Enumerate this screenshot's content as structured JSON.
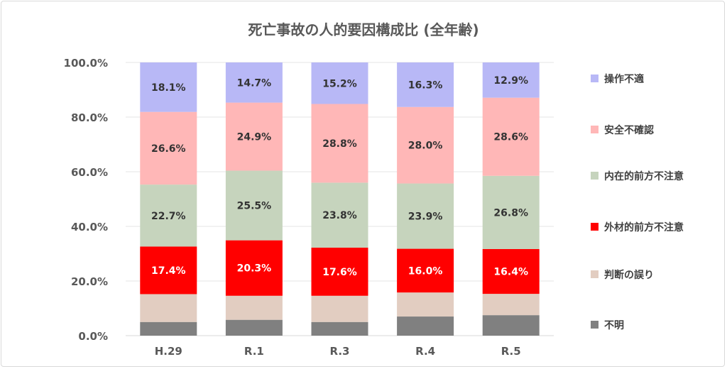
{
  "chart_data": {
    "type": "bar",
    "stacked": true,
    "title": "死亡事故の人的要因構成比 (全年齢)",
    "xlabel": "",
    "ylabel": "",
    "ylim": [
      0,
      100
    ],
    "y_ticks": [
      "0.0%",
      "20.0%",
      "40.0%",
      "60.0%",
      "80.0%",
      "100.0%"
    ],
    "grid": true,
    "legend_position": "right",
    "categories": [
      "H.29",
      "R.1",
      "R.3",
      "R.4",
      "R.5"
    ],
    "series": [
      {
        "name": "不明",
        "color": "#808080",
        "values": [
          5.0,
          5.8,
          5.0,
          7.0,
          7.5
        ],
        "labeled": false
      },
      {
        "name": "判断の誤り",
        "color": "#e2cdc1",
        "values": [
          10.2,
          8.8,
          9.6,
          8.8,
          7.8
        ],
        "labeled": false
      },
      {
        "name": "外材的前方不注意",
        "color": "#ff0000",
        "values": [
          17.4,
          20.3,
          17.6,
          16.0,
          16.4
        ],
        "labeled": true,
        "label_color": "#ffffff"
      },
      {
        "name": "内在的前方不注意",
        "color": "#c6d4bd",
        "values": [
          22.7,
          25.5,
          23.8,
          23.9,
          26.8
        ],
        "labeled": true,
        "label_color": "#333333"
      },
      {
        "name": "安全不確認",
        "color": "#ffb7b7",
        "values": [
          26.6,
          24.9,
          28.8,
          28.0,
          28.6
        ],
        "labeled": true,
        "label_color": "#333333"
      },
      {
        "name": "操作不適",
        "color": "#b8b8f6",
        "values": [
          18.1,
          14.7,
          15.2,
          16.3,
          12.9
        ],
        "labeled": true,
        "label_color": "#333333"
      }
    ]
  }
}
